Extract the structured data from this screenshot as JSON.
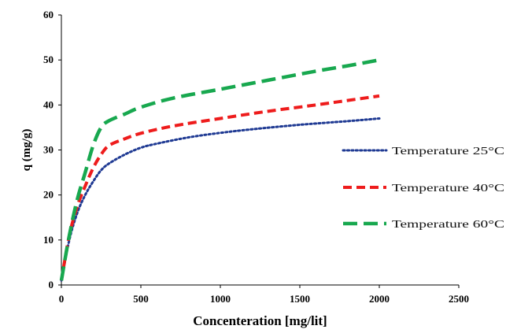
{
  "chart_data": {
    "type": "line",
    "title": "",
    "xlabel": "Concenteration [mg/lit]",
    "ylabel": "q (mg/g)",
    "xlim": [
      0,
      2500
    ],
    "ylim": [
      0,
      60
    ],
    "xticks": [
      0,
      500,
      1000,
      1500,
      2000,
      2500
    ],
    "yticks": [
      0,
      10,
      20,
      30,
      40,
      50,
      60
    ],
    "grid": false,
    "legend_position": "right",
    "series": [
      {
        "name": "Temperature 25°C",
        "color": "#1f3a93",
        "dash": "dotted",
        "points": [
          [
            0,
            1
          ],
          [
            50,
            10
          ],
          [
            100,
            16
          ],
          [
            150,
            20
          ],
          [
            200,
            23
          ],
          [
            250,
            25.5
          ],
          [
            300,
            27
          ],
          [
            400,
            29
          ],
          [
            500,
            30.5
          ],
          [
            600,
            31.4
          ],
          [
            800,
            32.8
          ],
          [
            1000,
            33.8
          ],
          [
            1200,
            34.6
          ],
          [
            1500,
            35.6
          ],
          [
            1800,
            36.4
          ],
          [
            2000,
            37
          ]
        ]
      },
      {
        "name": "Temperature 40°C",
        "color": "#ee1c1c",
        "dash": "dashed",
        "points": [
          [
            0,
            1
          ],
          [
            50,
            11
          ],
          [
            100,
            17.5
          ],
          [
            150,
            22
          ],
          [
            200,
            26
          ],
          [
            250,
            29
          ],
          [
            300,
            31
          ],
          [
            400,
            32.5
          ],
          [
            500,
            33.7
          ],
          [
            700,
            35.3
          ],
          [
            1000,
            37
          ],
          [
            1300,
            38.6
          ],
          [
            1600,
            40
          ],
          [
            1800,
            41
          ],
          [
            2000,
            42
          ]
        ]
      },
      {
        "name": "Temperature 60°C",
        "color": "#18a84f",
        "dash": "long-dashed",
        "points": [
          [
            0,
            1
          ],
          [
            50,
            11
          ],
          [
            100,
            19
          ],
          [
            150,
            25
          ],
          [
            200,
            31
          ],
          [
            250,
            35
          ],
          [
            300,
            36.5
          ],
          [
            400,
            38
          ],
          [
            500,
            39.5
          ],
          [
            700,
            41.5
          ],
          [
            1000,
            43.5
          ],
          [
            1300,
            45.5
          ],
          [
            1600,
            47.5
          ],
          [
            1800,
            48.7
          ],
          [
            2000,
            50
          ]
        ]
      }
    ]
  }
}
